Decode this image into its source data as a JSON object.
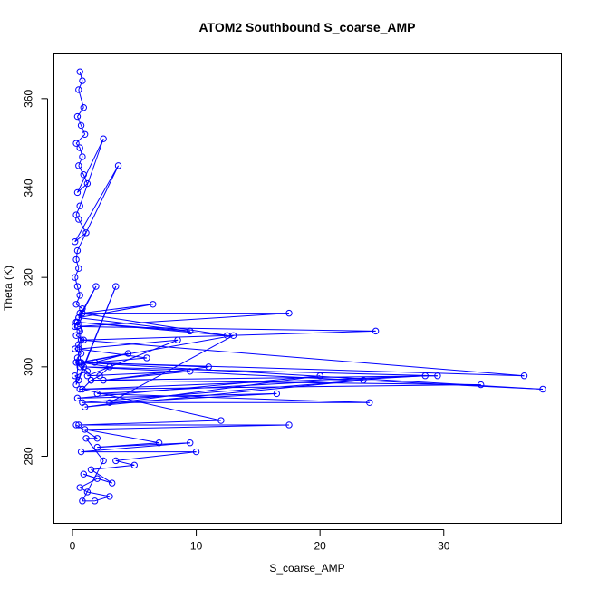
{
  "chart_data": {
    "type": "scatter",
    "title": "ATOM2 Southbound S_coarse_AMP",
    "xlabel": "S_coarse_AMP",
    "ylabel": "Theta (K)",
    "xlim": [
      -1.5,
      39.5
    ],
    "ylim": [
      265,
      370
    ],
    "x_ticks": [
      0,
      10,
      20,
      30
    ],
    "y_ticks": [
      280,
      300,
      320,
      340,
      360
    ],
    "grid": false,
    "legend": "none",
    "marker": "open-circle",
    "connected": true,
    "color": "#0000ff",
    "series": [
      {
        "x": [
          0.6,
          0.8,
          0.5,
          0.9,
          0.4,
          0.7,
          1.0,
          0.3,
          0.6,
          0.8,
          0.5,
          0.9,
          1.2,
          0.4,
          2.5,
          0.6,
          0.3,
          0.5,
          1.1,
          0.2,
          3.7,
          0.4,
          0.3,
          0.5,
          0.2,
          0.4,
          0.6,
          0.3,
          0.8,
          0.5,
          1.9,
          0.4,
          0.2,
          0.6,
          0.3,
          0.9,
          0.5,
          0.2,
          0.7,
          0.4,
          0.3,
          0.6,
          1.2,
          0.2,
          0.5,
          3.5,
          0.3,
          0.8,
          6.5,
          0.5,
          9.5,
          0.3,
          12.5,
          0.6,
          17.5,
          0.4,
          24.5,
          0.7,
          36.5,
          0.5,
          38.0,
          0.9,
          29.5,
          1.5,
          33.0,
          0.6,
          28.5,
          2.0,
          24.0,
          0.8,
          23.5,
          1.0,
          20.0,
          0.4,
          16.5,
          3.0,
          13.0,
          0.7,
          11.0,
          2.5,
          9.5,
          1.2,
          8.5,
          0.5,
          6.0,
          1.8,
          4.5,
          0.6,
          3.0,
          2.2,
          1.5,
          0.8,
          12.0,
          0.5,
          17.5,
          1.0,
          7.0,
          2.0,
          9.5,
          0.7,
          10.0,
          3.5,
          5.0,
          1.5,
          3.2,
          0.9,
          2.0,
          0.6,
          1.2,
          3.0,
          1.8,
          0.8,
          2.5,
          1.1,
          2.0,
          0.3
        ],
        "y": [
          366,
          364,
          362,
          358,
          356,
          354,
          352,
          350,
          349,
          347,
          345,
          343,
          341,
          339,
          351,
          336,
          334,
          333,
          330,
          328,
          345,
          326,
          324,
          322,
          320,
          318,
          316,
          314,
          313,
          311,
          318,
          310,
          309,
          308,
          307,
          306,
          305,
          304,
          303,
          302,
          301,
          300,
          299,
          298,
          297,
          318,
          296,
          312,
          314,
          311,
          308,
          310,
          307,
          312,
          312,
          309,
          308,
          306,
          298,
          301,
          295,
          300,
          298,
          297,
          296,
          295,
          298,
          294,
          292,
          292,
          297,
          291,
          298,
          293,
          294,
          292,
          307,
          301,
          300,
          297,
          299,
          298,
          306,
          304,
          302,
          301,
          303,
          301,
          300,
          298,
          297,
          295,
          288,
          287,
          287,
          286,
          283,
          282,
          283,
          281,
          281,
          279,
          278,
          277,
          274,
          276,
          275,
          273,
          272,
          271,
          270,
          270,
          279,
          284,
          284,
          287
        ]
      }
    ]
  }
}
